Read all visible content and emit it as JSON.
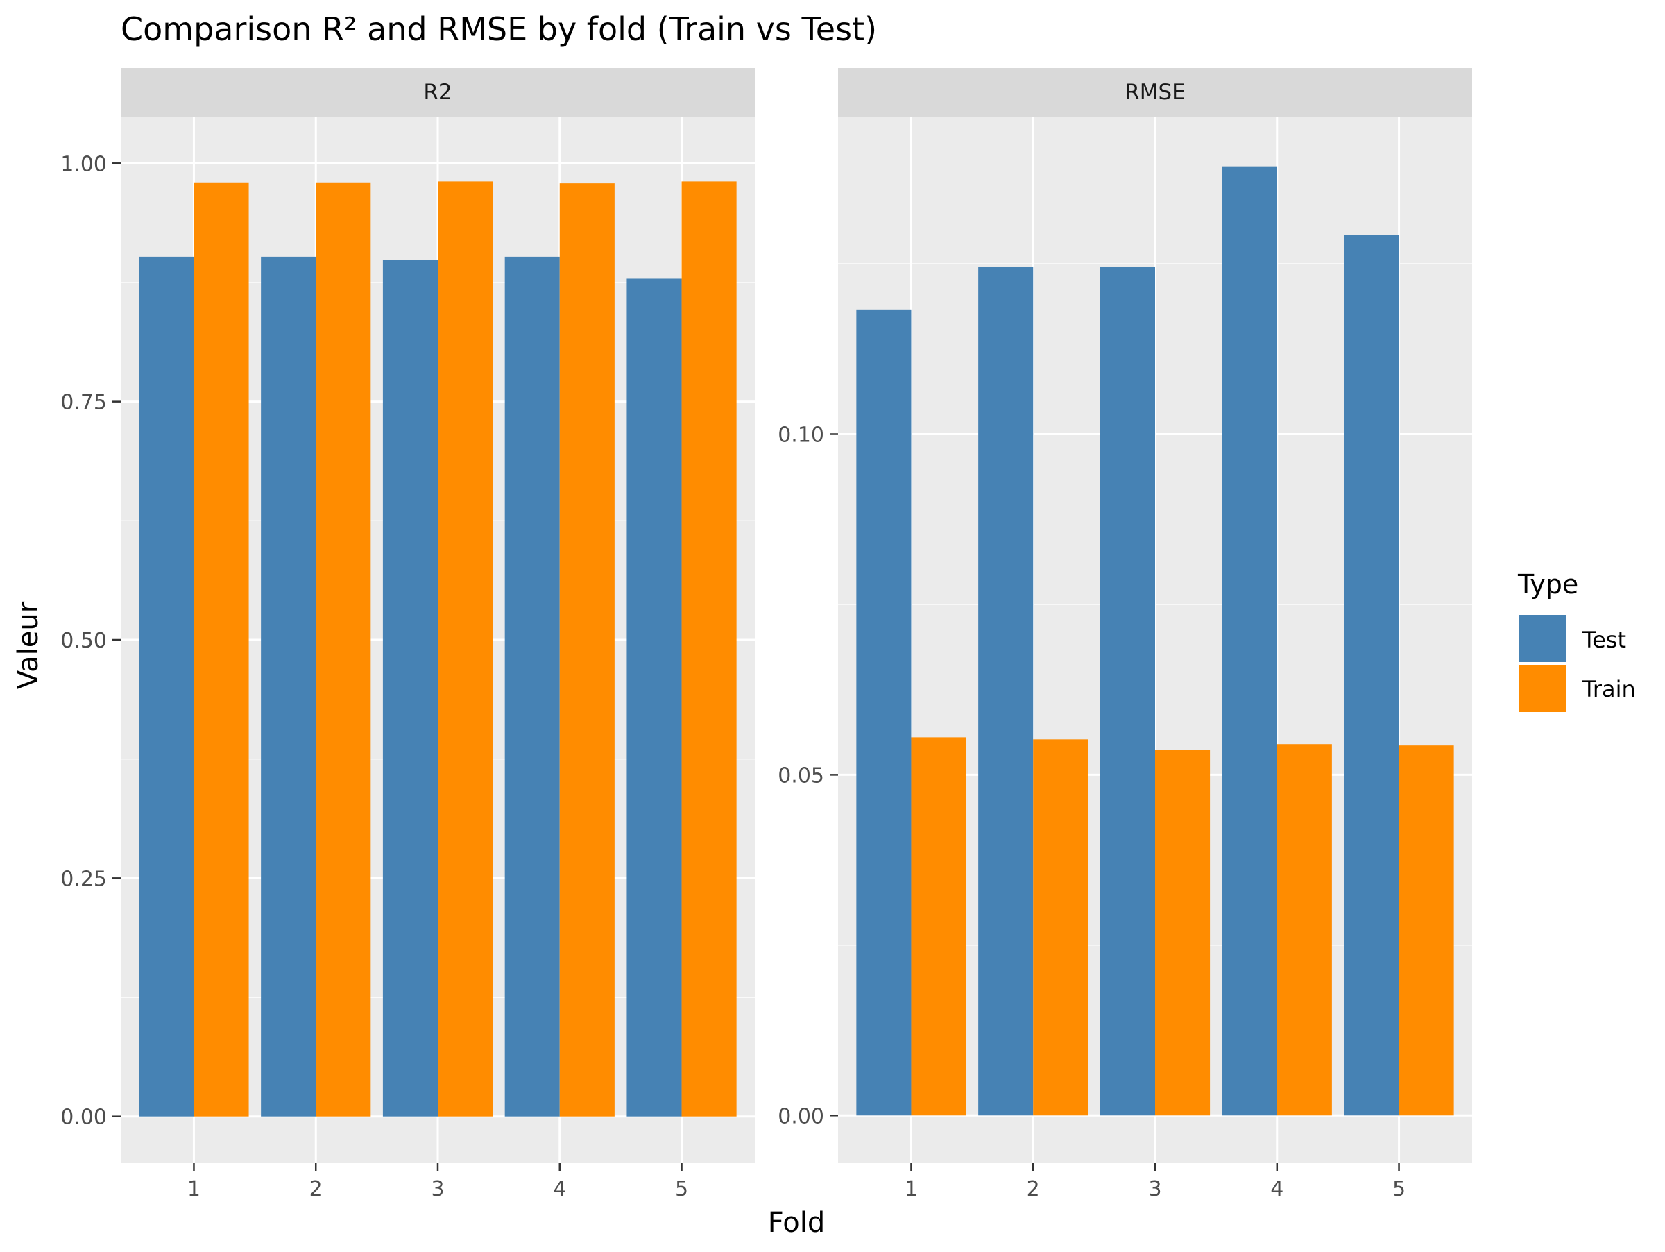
{
  "title": "Comparison R² and RMSE by fold (Train vs Test)",
  "xlabel": "Fold",
  "ylabel": "Valeur",
  "legend": {
    "title": "Type",
    "placement": "right",
    "items": [
      {
        "label": "Test",
        "color": "#4682B4"
      },
      {
        "label": "Train",
        "color": "#FF8C00"
      }
    ]
  },
  "colors": {
    "panel_bg": "#EBEBEB",
    "strip_bg": "#D9D9D9",
    "grid": "#FFFFFF",
    "text": "#4D4D4D",
    "title": "#000000"
  },
  "chart_data": [
    {
      "type": "bar",
      "panel": "R2",
      "categories": [
        "1",
        "2",
        "3",
        "4",
        "5"
      ],
      "series": [
        {
          "name": "Test",
          "values": [
            0.902,
            0.902,
            0.899,
            0.902,
            0.879
          ]
        },
        {
          "name": "Train",
          "values": [
            0.98,
            0.98,
            0.981,
            0.979,
            0.981
          ]
        }
      ],
      "ylim": [
        -0.049,
        1.049
      ],
      "yticks": [
        0.0,
        0.25,
        0.5,
        0.75,
        1.0
      ],
      "ytick_labels": [
        "0.00",
        "0.25",
        "0.50",
        "0.75",
        "1.00"
      ],
      "grid": true
    },
    {
      "type": "bar",
      "panel": "RMSE",
      "categories": [
        "1",
        "2",
        "3",
        "4",
        "5"
      ],
      "series": [
        {
          "name": "Test",
          "values": [
            0.1183,
            0.1246,
            0.1246,
            0.1393,
            0.1292
          ]
        },
        {
          "name": "Train",
          "values": [
            0.0555,
            0.0552,
            0.0537,
            0.0545,
            0.0543
          ]
        }
      ],
      "ylim": [
        -0.007,
        0.1466
      ],
      "yticks": [
        0.0,
        0.05,
        0.1
      ],
      "ytick_labels": [
        "0.00",
        "0.05",
        "0.10"
      ],
      "grid": true
    }
  ]
}
